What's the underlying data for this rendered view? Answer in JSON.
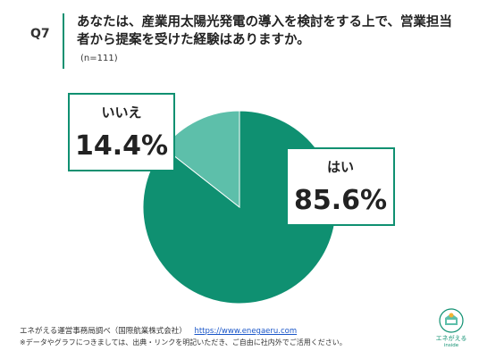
{
  "question": {
    "number": "Q7",
    "text": "あなたは、産業用太陽光発電の導入を検討をする上で、営業担当者から提案を受けた経験はありますか。",
    "sample": "(n=111)"
  },
  "chart_data": {
    "type": "pie",
    "title": "",
    "slices": [
      {
        "label": "はい",
        "value": 85.6,
        "display": "85.6%",
        "color": "#0f9071"
      },
      {
        "label": "いいえ",
        "value": 14.4,
        "display": "14.4%",
        "color": "#5dbfaa"
      }
    ]
  },
  "footer": {
    "source": "エネがえる運営事務局調べ（国際航業株式会社）",
    "url": "https://www.enegaeru.com",
    "note": "※データやグラフにつきましては、出典・リンクを明記いただき、ご自由に社内外でご活用ください。"
  },
  "logo": {
    "brand": "エネがえる",
    "sub": "inside",
    "icon": "enegaeru-logo-icon"
  }
}
